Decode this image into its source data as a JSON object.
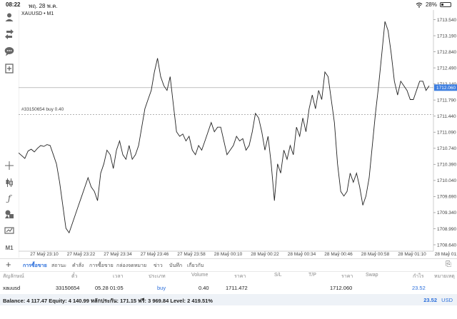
{
  "status_bar": {
    "time": "08:22",
    "date": "พฤ. 28 พ.ค.",
    "battery": "28%",
    "battery_level": 0.28
  },
  "sidebar": {
    "bottom_label": "M1"
  },
  "chart": {
    "symbol": "XAUUSD • M1",
    "order_label": "#33150654 buy 0.40",
    "current_price_label": "1712.060",
    "colors": {
      "price_line": "#222222",
      "current_label_bg": "#3d7ee0",
      "grid": "#d9d9d9"
    }
  },
  "chart_data": {
    "type": "line",
    "y_ticks": [
      "1713.540",
      "1713.190",
      "1712.840",
      "1712.490",
      "1712.140",
      "1711.790",
      "1711.440",
      "1711.090",
      "1710.740",
      "1710.390",
      "1710.040",
      "1709.690",
      "1709.340",
      "1708.990",
      "1708.640"
    ],
    "x_ticks": [
      "27 May 23:10",
      "27 May 23:22",
      "27 May 23:34",
      "27 May 23:46",
      "27 May 23:58",
      "28 May 00:10",
      "28 May 00:22",
      "28 May 00:34",
      "28 May 00:46",
      "28 May 00:58",
      "28 May 01:10",
      "28 May 01:22"
    ],
    "ylim": [
      1708.5,
      1713.75
    ],
    "current_price": 1712.06,
    "order_price": 1711.472,
    "series": [
      {
        "values": [
          1710.64,
          1710.58,
          1710.52,
          1710.68,
          1710.72,
          1710.66,
          1710.74,
          1710.8,
          1710.78,
          1710.82,
          1710.8,
          1710.6,
          1710.4,
          1710.0,
          1709.5,
          1709.0,
          1708.9,
          1709.1,
          1709.3,
          1709.5,
          1709.7,
          1709.9,
          1710.1,
          1709.9,
          1709.8,
          1709.6,
          1710.2,
          1710.4,
          1710.7,
          1710.6,
          1710.3,
          1710.7,
          1710.9,
          1710.6,
          1710.5,
          1710.8,
          1710.5,
          1710.6,
          1710.8,
          1711.2,
          1711.6,
          1711.8,
          1712.0,
          1712.4,
          1712.7,
          1712.3,
          1712.1,
          1712.0,
          1712.3,
          1711.7,
          1711.1,
          1711.0,
          1711.05,
          1710.9,
          1711.0,
          1710.7,
          1710.6,
          1710.8,
          1710.7,
          1710.9,
          1711.1,
          1711.3,
          1711.1,
          1711.2,
          1711.2,
          1710.9,
          1710.6,
          1710.7,
          1710.8,
          1711.0,
          1710.9,
          1710.95,
          1710.7,
          1710.8,
          1711.1,
          1711.5,
          1711.4,
          1711.1,
          1710.7,
          1711.0,
          1710.4,
          1709.6,
          1710.4,
          1710.2,
          1710.7,
          1710.5,
          1710.8,
          1710.6,
          1711.2,
          1711.0,
          1711.4,
          1711.1,
          1711.6,
          1711.9,
          1711.6,
          1712.0,
          1711.8,
          1712.4,
          1712.3,
          1711.8,
          1711.3,
          1710.4,
          1709.8,
          1709.7,
          1709.8,
          1710.2,
          1710.0,
          1710.2,
          1709.9,
          1709.5,
          1709.7,
          1710.1,
          1710.8,
          1711.5,
          1712.1,
          1712.8,
          1713.5,
          1713.3,
          1712.8,
          1712.2,
          1711.9,
          1712.2,
          1712.1,
          1712.0,
          1711.8,
          1711.8,
          1712.0,
          1712.2,
          1712.2,
          1712.0,
          1712.1
        ]
      }
    ]
  },
  "tabs": {
    "items": [
      {
        "label": "การซื้อขาย",
        "active": true
      },
      {
        "label": "สถานะ",
        "active": false
      },
      {
        "label": "คำสั่ง",
        "active": false
      },
      {
        "label": "การซื้อขาย",
        "active": false
      },
      {
        "label": "กล่องจดหมาย",
        "active": false
      },
      {
        "label": "ข่าว",
        "active": false
      },
      {
        "label": "บันทึก",
        "active": false
      },
      {
        "label": "เกี่ยวกับ",
        "active": false
      }
    ]
  },
  "table": {
    "headers": {
      "symbol": "สัญลักษณ์",
      "ticket": "ตั๋ว",
      "time": "เวลา",
      "type": "ประเภท",
      "volume": "Volume",
      "price": "ราคา",
      "sl": "S/L",
      "tp": "T/P",
      "price2": "ราคา",
      "swap": "Swap",
      "profit": "กำไร",
      "comment": "หมายเหตุ"
    },
    "row": {
      "symbol": "xauusd",
      "ticket": "33150654",
      "time": "05.28 01:05",
      "type": "buy",
      "volume": "0.40",
      "price": "1711.472",
      "price2": "1712.060",
      "profit": "23.52"
    }
  },
  "balance_bar": {
    "summary": "Balance: 4 117.47 Equity: 4 140.99 หลักประกัน: 171.15 ฟรี: 3 969.84 Level: 2 419.51%",
    "total": "23.52",
    "currency": "USD"
  }
}
